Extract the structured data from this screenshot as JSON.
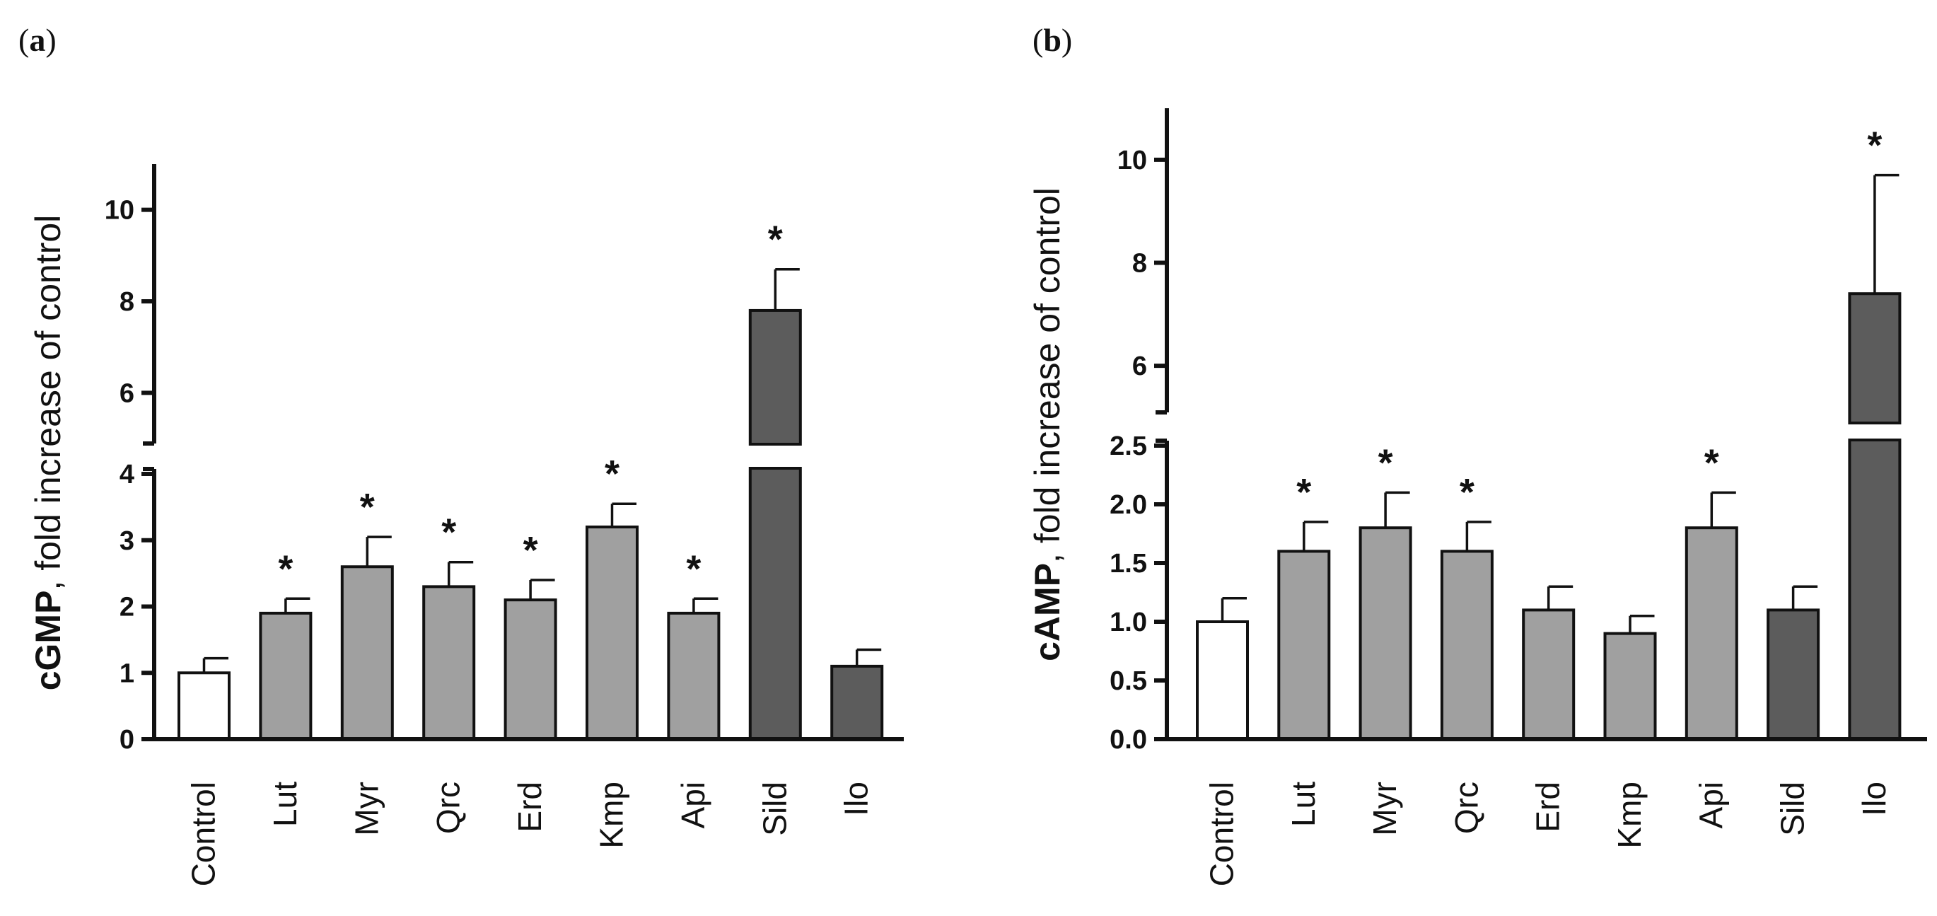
{
  "figure": {
    "panels": [
      {
        "label_open": "(",
        "label_letter": "a",
        "label_close": ")"
      },
      {
        "label_open": "(",
        "label_letter": "b",
        "label_close": ")"
      }
    ]
  },
  "colors": {
    "Control": "#ffffff",
    "flavonoid": "#a0a0a0",
    "reference": "#5c5c5c",
    "axis": "#111111"
  },
  "chart_data": [
    {
      "type": "bar",
      "panel": "a",
      "title": "",
      "ylabel": "cGMP, fold increase of control",
      "ylabel_bold_part": "cGMP",
      "ylabel_rest": ", fold increase of control",
      "xlabel": "",
      "categories": [
        "Control",
        "Lut",
        "Myr",
        "Qrc",
        "Erd",
        "Kmp",
        "Api",
        "Sild",
        "Ilo"
      ],
      "values": [
        1.0,
        1.9,
        2.6,
        2.3,
        2.1,
        3.2,
        1.9,
        7.8,
        1.1
      ],
      "errors": [
        0.22,
        0.22,
        0.45,
        0.37,
        0.3,
        0.35,
        0.22,
        0.9,
        0.25
      ],
      "significant": [
        false,
        true,
        true,
        true,
        true,
        true,
        true,
        true,
        false
      ],
      "significance_marker": "*",
      "bar_groups": [
        "Control",
        "flavonoid",
        "flavonoid",
        "flavonoid",
        "flavonoid",
        "flavonoid",
        "flavonoid",
        "reference",
        "reference"
      ],
      "broken_axis": true,
      "lower_range": [
        0,
        4
      ],
      "upper_range": [
        5,
        11
      ],
      "lower_ticks": [
        0,
        1,
        2,
        3,
        4
      ],
      "upper_ticks": [
        6,
        8,
        10
      ],
      "lower_tick_labels": [
        "0",
        "1",
        "2",
        "3",
        "4"
      ],
      "upper_tick_labels": [
        "6",
        "8",
        "10"
      ]
    },
    {
      "type": "bar",
      "panel": "b",
      "title": "",
      "ylabel": "cAMP, fold increase of control",
      "ylabel_bold_part": "cAMP",
      "ylabel_rest": ", fold increase of control",
      "xlabel": "",
      "categories": [
        "Control",
        "Lut",
        "Myr",
        "Qrc",
        "Erd",
        "Kmp",
        "Api",
        "Sild",
        "Ilo"
      ],
      "values": [
        1.0,
        1.6,
        1.8,
        1.6,
        1.1,
        0.9,
        1.8,
        1.1,
        7.4
      ],
      "errors": [
        0.2,
        0.25,
        0.3,
        0.25,
        0.2,
        0.15,
        0.3,
        0.2,
        2.3
      ],
      "significant": [
        false,
        true,
        true,
        true,
        false,
        false,
        true,
        false,
        true
      ],
      "significance_marker": "*",
      "bar_groups": [
        "Control",
        "flavonoid",
        "flavonoid",
        "flavonoid",
        "flavonoid",
        "flavonoid",
        "flavonoid",
        "reference",
        "reference"
      ],
      "broken_axis": true,
      "lower_range": [
        0,
        2.5
      ],
      "upper_range": [
        5,
        11
      ],
      "lower_ticks": [
        0,
        0.5,
        1.0,
        1.5,
        2.0,
        2.5
      ],
      "upper_ticks": [
        6,
        8,
        10
      ],
      "lower_tick_labels": [
        "0.0",
        "0.5",
        "1.0",
        "1.5",
        "2.0",
        "2.5"
      ],
      "upper_tick_labels": [
        "6",
        "8",
        "10"
      ]
    }
  ]
}
